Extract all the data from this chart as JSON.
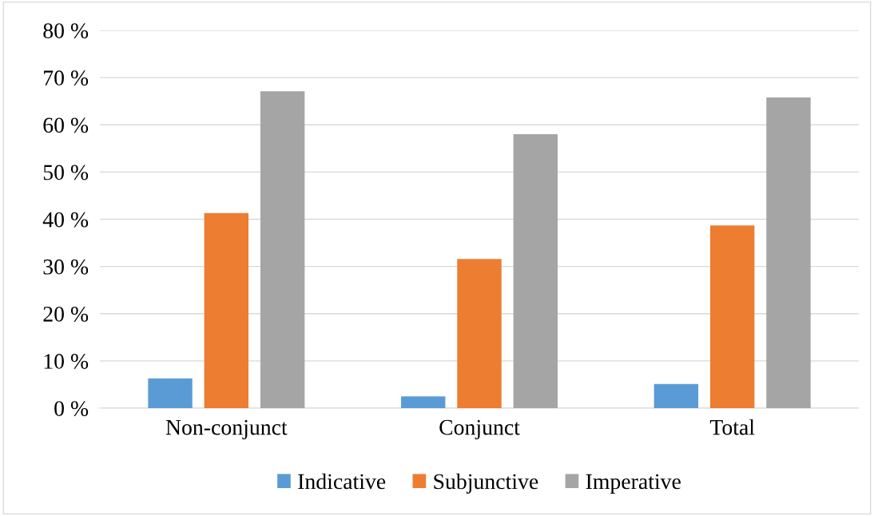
{
  "chart_data": {
    "type": "bar",
    "categories": [
      "Non-conjunct",
      "Conjunct",
      "Total"
    ],
    "series": [
      {
        "name": "Indicative",
        "color": "#5b9bd5",
        "values": [
          6.3,
          2.5,
          5.1
        ]
      },
      {
        "name": "Subjunctive",
        "color": "#ed7d31",
        "values": [
          41.3,
          31.6,
          38.7
        ]
      },
      {
        "name": "Imperative",
        "color": "#a5a5a5",
        "values": [
          67.1,
          58.0,
          65.8
        ]
      }
    ],
    "ylim": [
      0,
      80
    ],
    "yticks": [
      {
        "value": 0,
        "label": "0 %"
      },
      {
        "value": 10,
        "label": "10 %"
      },
      {
        "value": 20,
        "label": "20 %"
      },
      {
        "value": 30,
        "label": "30 %"
      },
      {
        "value": 40,
        "label": "40 %"
      },
      {
        "value": 50,
        "label": "50 %"
      },
      {
        "value": 60,
        "label": "60 %"
      },
      {
        "value": 70,
        "label": "70 %"
      },
      {
        "value": 80,
        "label": "80 %"
      }
    ],
    "grid": "y",
    "legend": "bottom"
  }
}
